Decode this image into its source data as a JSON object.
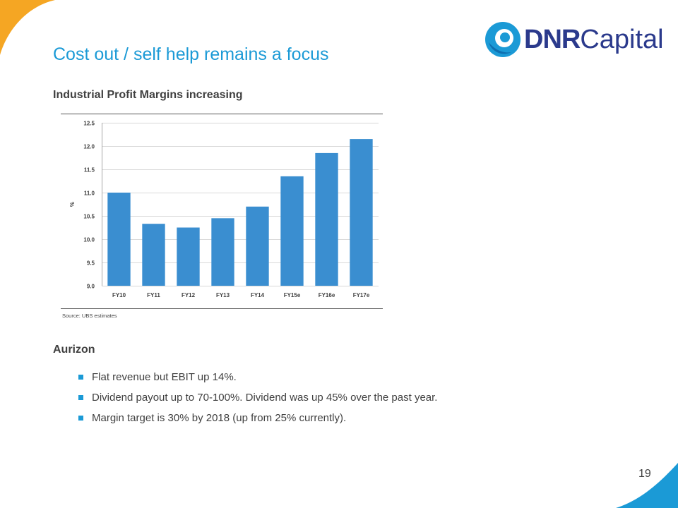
{
  "slide": {
    "title": "Cost out / self help remains a focus",
    "page_number": "19",
    "accent_color": "#1b9ad6",
    "corner_color": "#f5a623"
  },
  "logo": {
    "text_bold": "DNR",
    "text_light": "Capital",
    "color": "#2b3a8c"
  },
  "sections": {
    "chart_heading": "Industrial Profit Margins increasing",
    "aurizon_heading": "Aurizon"
  },
  "bullets": [
    "Flat revenue but EBIT up 14%.",
    "Dividend payout up to 70-100%. Dividend was up 45% over the past year.",
    "Margin target is 30% by 2018 (up from 25% currently)."
  ],
  "chart_data": {
    "type": "bar",
    "categories": [
      "FY10",
      "FY11",
      "FY12",
      "FY13",
      "FY14",
      "FY15e",
      "FY16e",
      "FY17e"
    ],
    "values": [
      11.0,
      10.33,
      10.25,
      10.45,
      10.7,
      11.35,
      11.85,
      12.15
    ],
    "ylabel": "%",
    "ylim": [
      9.0,
      12.5
    ],
    "yticks": [
      "9.0",
      "9.5",
      "10.0",
      "10.5",
      "11.0",
      "11.5",
      "12.0",
      "12.5"
    ],
    "grid": true,
    "bar_color": "#3a8ed0",
    "source": "Source: UBS estimates"
  }
}
